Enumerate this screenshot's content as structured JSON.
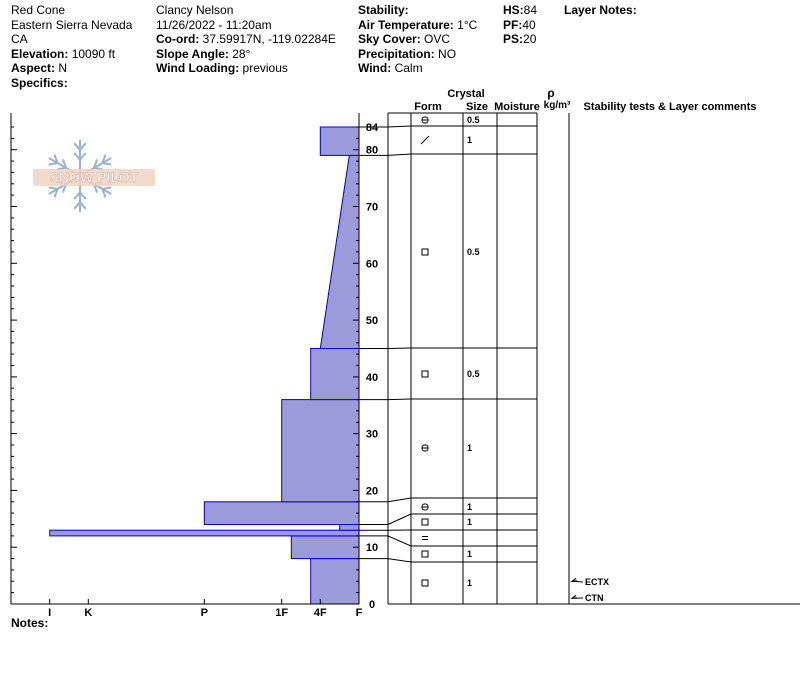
{
  "header": {
    "location": "Red Cone",
    "range": "Eastern Sierra Nevada",
    "state": "CA",
    "elevation_label": "Elevation:",
    "elevation": "10090 ft",
    "aspect_label": "Aspect:",
    "aspect": "N",
    "specifics_label": "Specifics:",
    "observer": "Clancy Nelson",
    "datetime": "11/26/2022 - 11:20am",
    "coord_label": "Co-ord:",
    "coord": "37.59917N, -119.02284E",
    "slope_label": "Slope Angle:",
    "slope": "28°",
    "wind_loading_label": "Wind Loading:",
    "wind_loading": "previous",
    "stability_label": "Stability:",
    "stability": "",
    "air_temp_label": "Air Temperature:",
    "air_temp": "1°C",
    "sky_label": "Sky Cover:",
    "sky": "OVC",
    "precip_label": "Precipitation:",
    "precip": "NO",
    "wind_label": "Wind:",
    "wind": "Calm",
    "hs_label": "HS:",
    "hs": "84",
    "pf_label": "PF:",
    "pf": "40",
    "ps_label": "PS:",
    "ps": "20",
    "layer_notes_label": "Layer Notes:"
  },
  "notes_label": "Notes:",
  "watermark": "SNOW PILOT",
  "table_headers": {
    "crystal": "Crystal",
    "form": "Form",
    "size": "Size",
    "moisture": "Moisture",
    "rho": "ρ",
    "density_unit": "kg/m³",
    "comments": "Stability tests & Layer comments"
  },
  "chart_data": {
    "type": "bar",
    "orientation": "horizontal",
    "x_categories": [
      "I",
      "K",
      "P",
      "1F",
      "4F",
      "F"
    ],
    "y_ticks": [
      0,
      10,
      20,
      30,
      40,
      50,
      60,
      70,
      80,
      84
    ],
    "ylim": [
      0,
      84
    ],
    "hardness_scale_max": 9,
    "hardness_note": "hardness index in units of the axis scale: I=8, K=7, P=4, 1F=2, 4F=1, F=0",
    "layers": [
      {
        "bottom": 0,
        "top": 8,
        "hardness": 1.25,
        "form": "square",
        "size": "1"
      },
      {
        "bottom": 8,
        "top": 12,
        "hardness": 1.75,
        "form": "square",
        "size": "1"
      },
      {
        "bottom": 12,
        "top": 13,
        "hardness": 8.0,
        "form": "equals",
        "size": ""
      },
      {
        "bottom": 13,
        "top": 14,
        "hardness": 0.5,
        "form": "",
        "size": ""
      },
      {
        "bottom": 14,
        "top": 18,
        "hardness": 4.0,
        "form": "square",
        "size": "1"
      },
      {
        "bottom": 18,
        "top": 36,
        "hardness": 2.0,
        "form": "rounded-square",
        "size": "1"
      },
      {
        "bottom": 36,
        "top": 45,
        "hardness": 1.25,
        "form": "square",
        "size": "0.5"
      },
      {
        "bottom": 45,
        "top": 79,
        "hardness_bottom": 1.0,
        "hardness_top": 0.25,
        "form": "square",
        "size": "0.5"
      },
      {
        "bottom": 79,
        "top": 84,
        "hardness": 1.0,
        "form": "slash",
        "size": "1",
        "upper_form": "rounded-square",
        "upper_size": "0.5"
      }
    ],
    "tests": [
      {
        "label": "ECTX",
        "height": 4
      },
      {
        "label": "CTN",
        "height": 1
      }
    ],
    "colors": {
      "bar_fill": "#9b9bd9",
      "bar_stroke": "#0000cc"
    }
  }
}
